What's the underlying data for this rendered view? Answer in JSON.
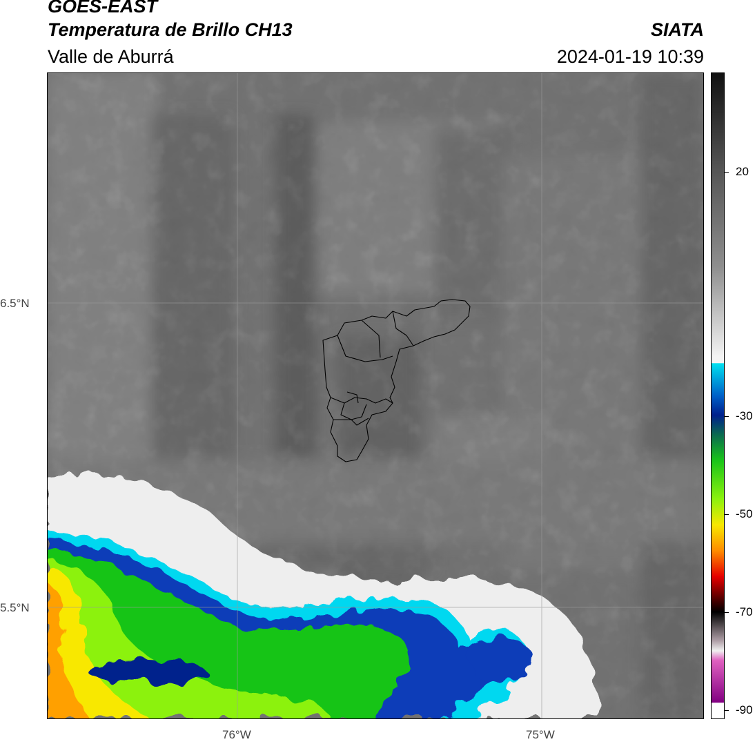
{
  "header": {
    "satellite": "GOES-EAST",
    "product": "Temperatura de Brillo CH13",
    "region": "Valle de Aburrá",
    "org": "SIATA",
    "datetime": "2024-01-19 10:39"
  },
  "axes": {
    "lat_labels": [
      "6.5°N",
      "5.5°N"
    ],
    "lon_labels": [
      "76°W",
      "75°W"
    ]
  },
  "colorbar": {
    "ticks": [
      "20",
      "-30",
      "-50",
      "-70",
      "-90"
    ],
    "palette": {
      "warm_dark": "#161616",
      "warm_light": "#f4f4f4",
      "cyan": "#00d8f0",
      "blue": "#0a3cb8",
      "navy": "#001f8c",
      "green": "#19c419",
      "lime": "#8cf20e",
      "yellow": "#f8e800",
      "orange": "#ff8c00",
      "red": "#e60000",
      "dark_red": "#3c0000",
      "magenta": "#e060c0",
      "purple": "#820082"
    }
  },
  "colors": {
    "land_gray": "#6e6e6e",
    "boundary": "#000000"
  }
}
